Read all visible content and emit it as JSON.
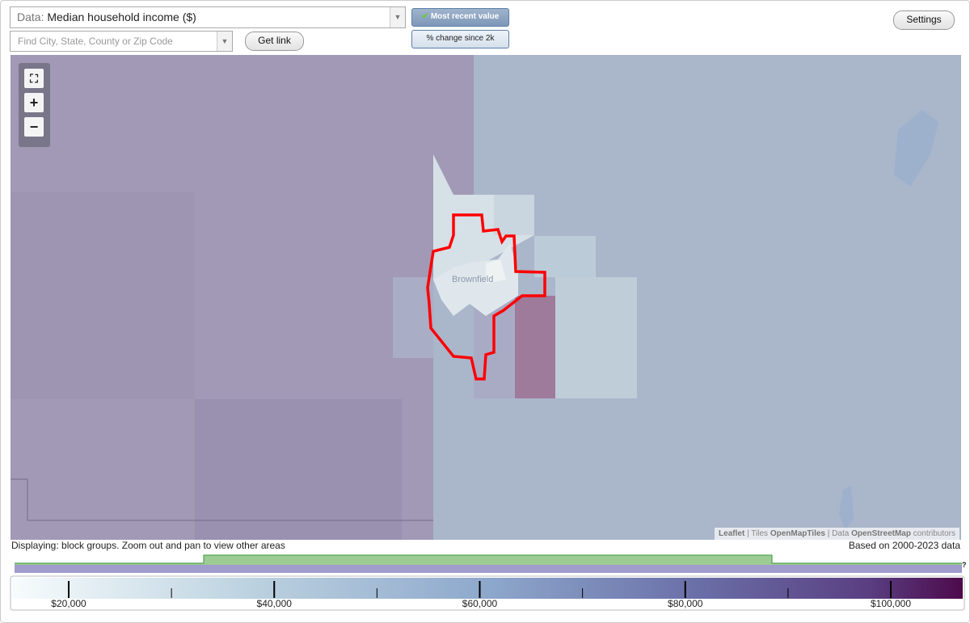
{
  "controls": {
    "data_label": "Data:",
    "data_value": "Median household income ($)",
    "search_placeholder": "Find City, State, County or Zip Code",
    "get_link": "Get link",
    "mode_buttons": [
      "Most recent value",
      "% change since 2k"
    ],
    "settings": "Settings"
  },
  "map": {
    "place_label": "Brownfield",
    "attribution": [
      "Leaflet",
      "|",
      "Tiles",
      "OpenMapTiles",
      "|",
      "Data",
      "OpenStreetMap",
      "contributors"
    ]
  },
  "status": {
    "displaying": "Displaying: block groups. Zoom out and pan to view other areas",
    "based_on": "Based on 2000-2023 data",
    "help": "?"
  },
  "legend": {
    "labels": [
      "$20,000",
      "$40,000",
      "$60,000",
      "$80,000",
      "$100,000"
    ]
  }
}
